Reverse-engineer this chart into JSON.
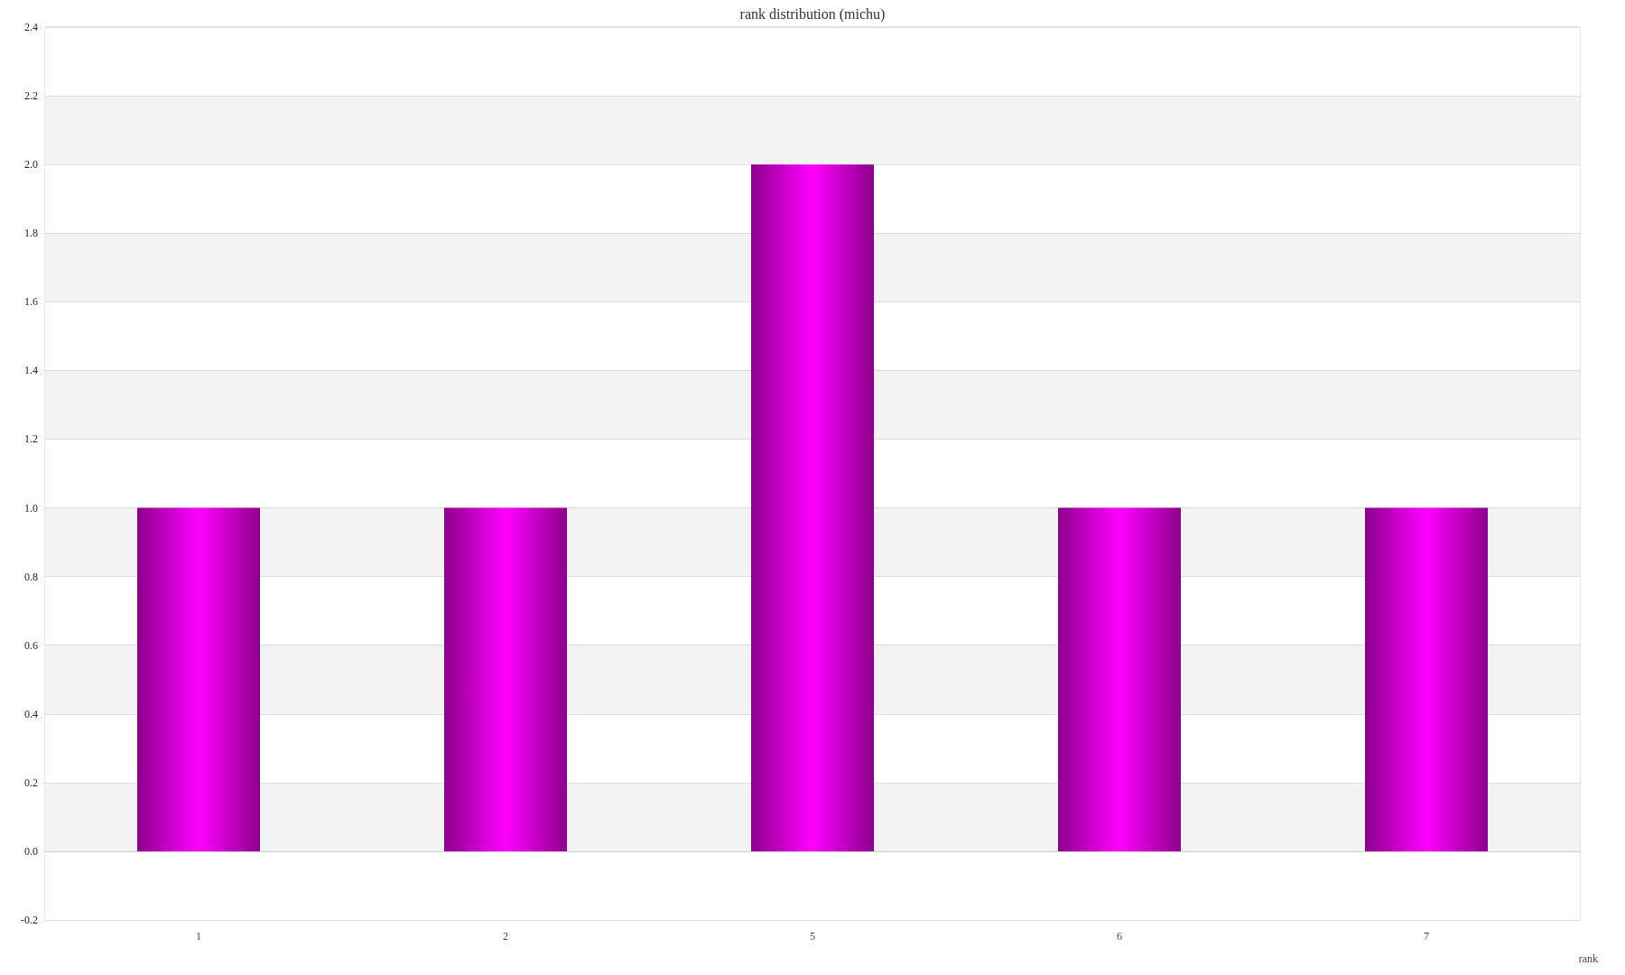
{
  "chart_data": {
    "type": "bar",
    "title": "rank distribution (michu)",
    "xlabel": "rank",
    "categories": [
      "1",
      "2",
      "5",
      "6",
      "7"
    ],
    "values": [
      1,
      1,
      2,
      1,
      1
    ],
    "color": "#ff00ff",
    "ylim": [
      -0.2,
      2.4
    ],
    "yticks": [
      {
        "value": -0.2,
        "label": "-0.2"
      },
      {
        "value": 0,
        "label": "0.0"
      },
      {
        "value": 0.2,
        "label": "0.2"
      },
      {
        "value": 0.4,
        "label": "0.4"
      },
      {
        "value": 0.6,
        "label": "0.6"
      },
      {
        "value": 0.8,
        "label": "0.8"
      },
      {
        "value": 1,
        "label": "1.0"
      },
      {
        "value": 1.2,
        "label": "1.2"
      },
      {
        "value": 1.4,
        "label": "1.4"
      },
      {
        "value": 1.6,
        "label": "1.6"
      },
      {
        "value": 1.8,
        "label": "1.8"
      },
      {
        "value": 2,
        "label": "2.0"
      },
      {
        "value": 2.2,
        "label": "2.2"
      },
      {
        "value": 2.4,
        "label": "2.4"
      }
    ],
    "grid": true
  }
}
